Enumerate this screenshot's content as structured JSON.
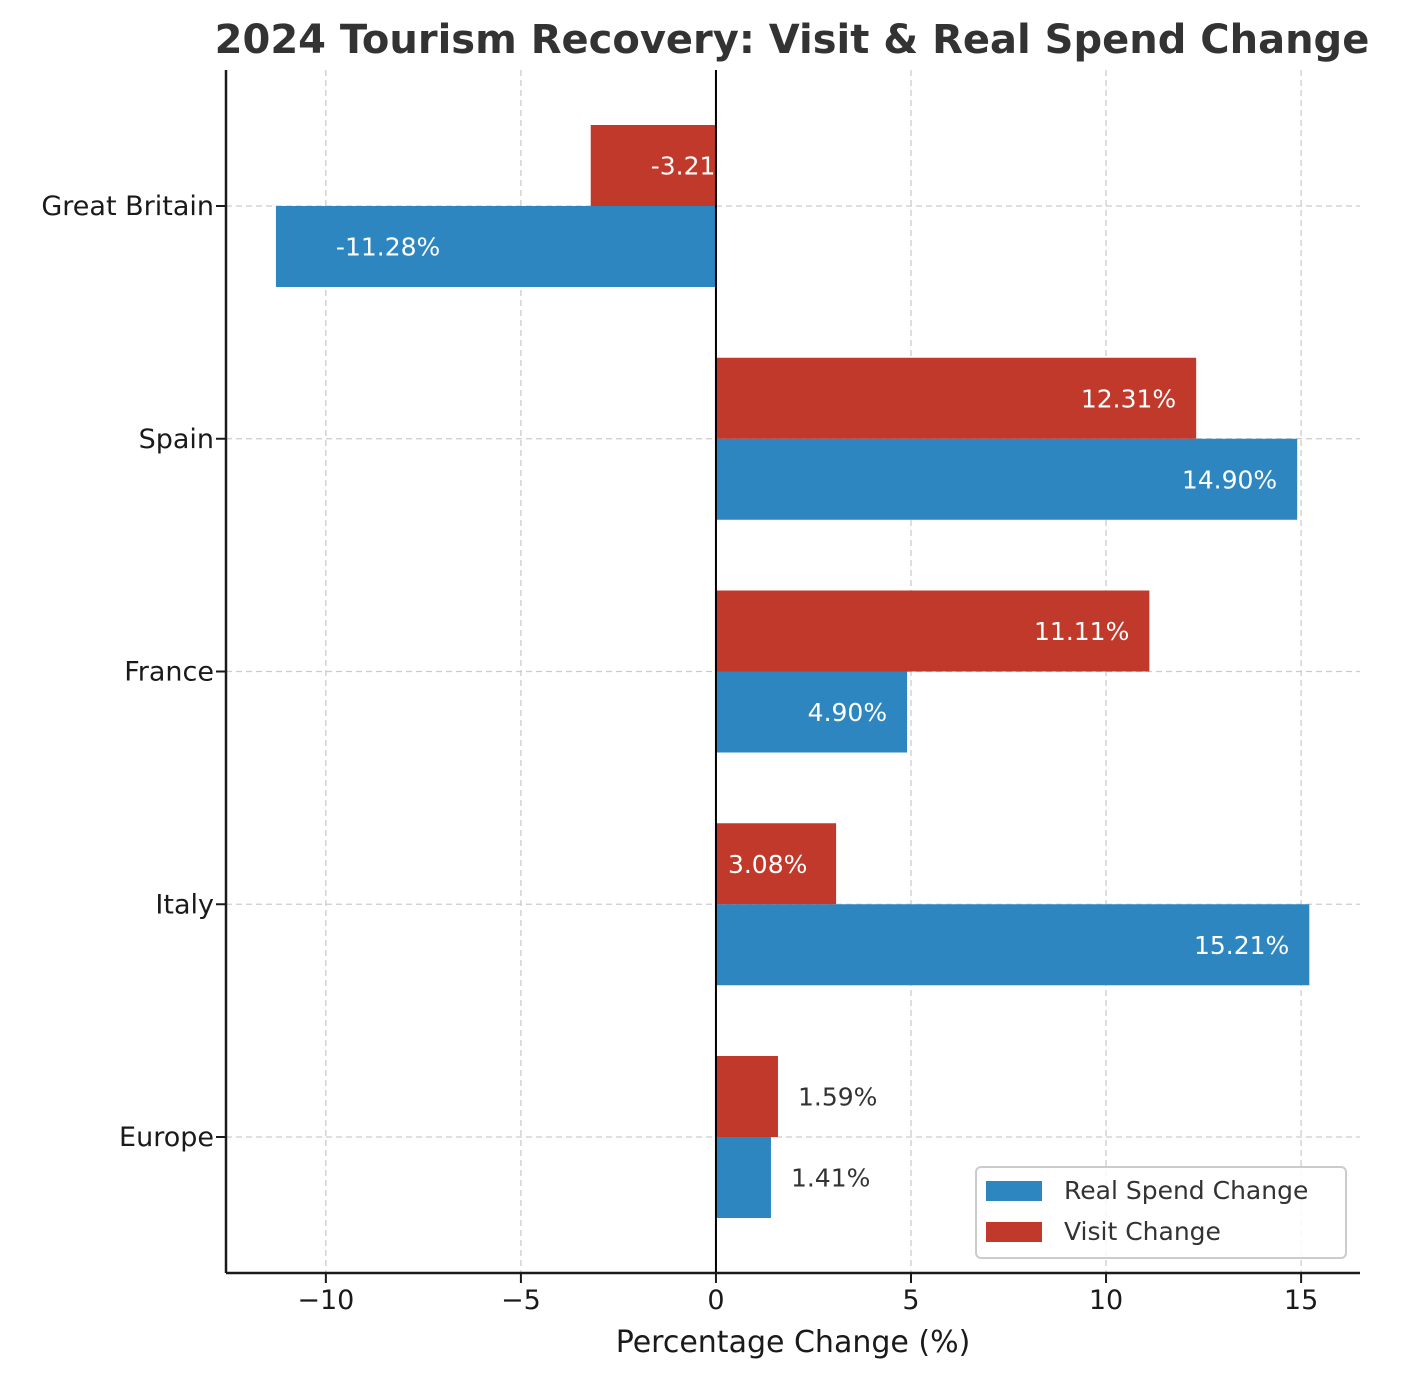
{
  "chart_data": {
    "type": "bar",
    "orientation": "horizontal",
    "title": "2024 Tourism Recovery: Visit & Real Spend Change",
    "xlabel": "Percentage Change (%)",
    "ylabel": "",
    "xlim": [
      -12.56,
      16.51
    ],
    "xticks": [
      -10,
      -5,
      0,
      5,
      10,
      15
    ],
    "xtick_labels": [
      "−10",
      "−5",
      "0",
      "5",
      "10",
      "15"
    ],
    "categories": [
      "Great Britain",
      "Spain",
      "France",
      "Italy",
      "Europe"
    ],
    "series": [
      {
        "name": "Real Spend Change",
        "color": "#2e86c1",
        "values": [
          -11.28,
          14.9,
          4.9,
          15.21,
          1.41
        ],
        "labels": [
          "-11.28%",
          "14.90%",
          "4.90%",
          "15.21%",
          "1.41%"
        ]
      },
      {
        "name": "Visit Change",
        "color": "#c0392b",
        "values": [
          -3.21,
          12.31,
          11.11,
          3.08,
          1.59
        ],
        "labels": [
          "-3.21%",
          "12.31%",
          "11.11%",
          "3.08%",
          "1.59%"
        ]
      }
    ],
    "grid": true,
    "legend": {
      "position": "bottom-right",
      "entries": [
        "Real Spend Change",
        "Visit Change"
      ]
    }
  }
}
